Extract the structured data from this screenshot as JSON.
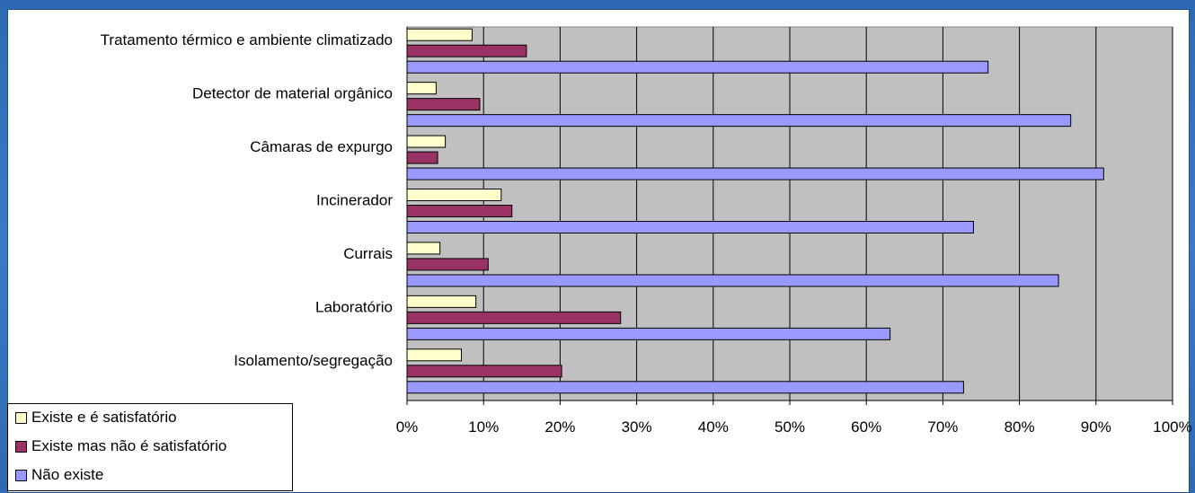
{
  "chart_data": {
    "type": "bar",
    "orientation": "horizontal",
    "categories": [
      "Tratamento térmico e ambiente climatizado",
      "Detector de material orgânico",
      "Câmaras de expurgo",
      "Incinerador",
      "Currais",
      "Laboratório",
      "Isolamento/segregação"
    ],
    "series": [
      {
        "name": "Existe e é satisfatório",
        "color": "#ffffcc",
        "values": [
          8.5,
          3.8,
          5.0,
          12.3,
          4.3,
          9.0,
          7.1
        ]
      },
      {
        "name": "Existe mas não é satisfatório",
        "color": "#993366",
        "values": [
          15.6,
          9.5,
          4.0,
          13.7,
          10.6,
          27.9,
          20.2
        ]
      },
      {
        "name": "Não existe",
        "color": "#9999ff",
        "values": [
          75.9,
          86.7,
          91.0,
          74.0,
          85.1,
          63.1,
          72.7
        ]
      }
    ],
    "x_ticks": [
      "0%",
      "10%",
      "20%",
      "30%",
      "40%",
      "50%",
      "60%",
      "70%",
      "80%",
      "90%",
      "100%"
    ],
    "xlim": [
      0,
      100
    ],
    "plot_background": "#c0c0c0",
    "grid": true,
    "legend_position": "bottom-left"
  }
}
